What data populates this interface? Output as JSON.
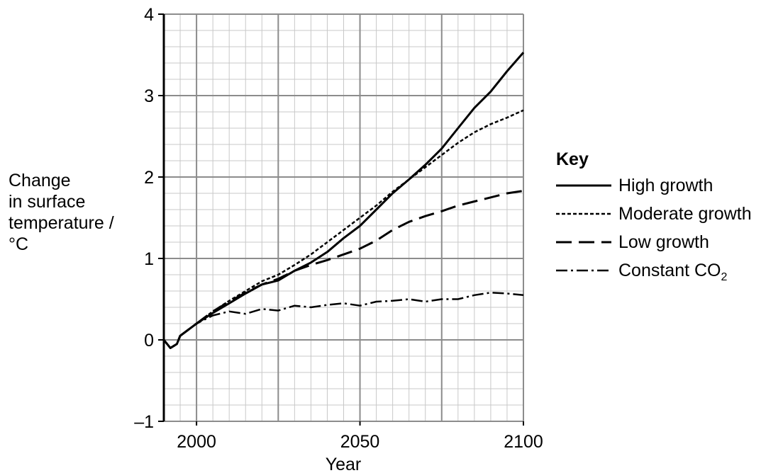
{
  "chart_data": {
    "type": "line",
    "title": "",
    "xlabel": "Year",
    "ylabel_lines": [
      "Change",
      "in surface",
      "temperature /",
      "°C"
    ],
    "xlim": [
      1990,
      2100
    ],
    "ylim": [
      -1,
      4
    ],
    "x_ticks": [
      2000,
      2050,
      2100
    ],
    "x_tick_labels": [
      "2000",
      "2050",
      "2100"
    ],
    "y_ticks": [
      -1,
      0,
      1,
      2,
      3,
      4
    ],
    "y_tick_labels": [
      "–1",
      "0",
      "1",
      "2",
      "3",
      "4"
    ],
    "grid": true,
    "legend": {
      "title": "Key",
      "placement": "right",
      "entries": [
        {
          "label": "High growth",
          "style": "solid"
        },
        {
          "label": "Moderate growth",
          "style": "dotted"
        },
        {
          "label": "Low growth",
          "style": "dashed"
        },
        {
          "label_main": "Constant CO",
          "label_sub": "2",
          "style": "dash-dot"
        }
      ]
    },
    "series": [
      {
        "name": "High growth",
        "style": "solid",
        "x": [
          1990,
          1992,
          1994,
          1995,
          2000,
          2005,
          2010,
          2015,
          2020,
          2025,
          2030,
          2035,
          2040,
          2045,
          2050,
          2055,
          2060,
          2065,
          2070,
          2075,
          2080,
          2085,
          2090,
          2095,
          2100
        ],
        "y": [
          0.0,
          -0.1,
          -0.05,
          0.05,
          0.2,
          0.33,
          0.45,
          0.57,
          0.68,
          0.73,
          0.85,
          0.95,
          1.08,
          1.25,
          1.4,
          1.6,
          1.8,
          1.97,
          2.15,
          2.35,
          2.6,
          2.85,
          3.05,
          3.3,
          3.53
        ]
      },
      {
        "name": "Moderate growth",
        "style": "dotted",
        "x": [
          1990,
          1992,
          1994,
          1995,
          2000,
          2005,
          2010,
          2015,
          2020,
          2025,
          2030,
          2035,
          2040,
          2045,
          2050,
          2055,
          2060,
          2065,
          2070,
          2075,
          2080,
          2085,
          2090,
          2095,
          2100
        ],
        "y": [
          0.0,
          -0.1,
          -0.05,
          0.05,
          0.2,
          0.35,
          0.48,
          0.6,
          0.72,
          0.8,
          0.92,
          1.05,
          1.2,
          1.35,
          1.5,
          1.65,
          1.82,
          1.97,
          2.12,
          2.27,
          2.42,
          2.55,
          2.65,
          2.73,
          2.82
        ]
      },
      {
        "name": "Low growth",
        "style": "dashed",
        "x": [
          1990,
          1992,
          1994,
          1995,
          2000,
          2005,
          2010,
          2015,
          2020,
          2025,
          2030,
          2035,
          2040,
          2045,
          2050,
          2055,
          2060,
          2065,
          2070,
          2075,
          2080,
          2085,
          2090,
          2095,
          2100
        ],
        "y": [
          0.0,
          -0.1,
          -0.05,
          0.05,
          0.2,
          0.35,
          0.47,
          0.58,
          0.68,
          0.75,
          0.85,
          0.92,
          0.98,
          1.05,
          1.12,
          1.22,
          1.35,
          1.45,
          1.52,
          1.58,
          1.65,
          1.7,
          1.75,
          1.8,
          1.83
        ]
      },
      {
        "name": "Constant CO2",
        "style": "dash-dot",
        "x": [
          1990,
          1992,
          1994,
          1995,
          2000,
          2005,
          2010,
          2015,
          2020,
          2025,
          2030,
          2035,
          2040,
          2045,
          2050,
          2055,
          2060,
          2065,
          2070,
          2075,
          2080,
          2085,
          2090,
          2095,
          2100
        ],
        "y": [
          0.0,
          -0.1,
          -0.05,
          0.05,
          0.2,
          0.3,
          0.35,
          0.32,
          0.38,
          0.36,
          0.42,
          0.4,
          0.43,
          0.45,
          0.42,
          0.47,
          0.48,
          0.5,
          0.47,
          0.5,
          0.5,
          0.55,
          0.58,
          0.57,
          0.55
        ]
      }
    ]
  }
}
